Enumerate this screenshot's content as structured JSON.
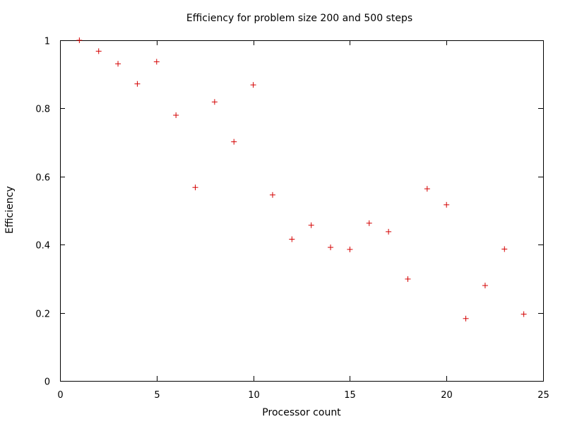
{
  "chart_data": {
    "type": "scatter",
    "title": "Efficiency for problem size 200 and 500 steps",
    "xlabel": "Processor count",
    "ylabel": "Efficiency",
    "xlim": [
      0,
      25
    ],
    "ylim": [
      0,
      1
    ],
    "xticks": [
      0,
      5,
      10,
      15,
      20,
      25
    ],
    "yticks": [
      0,
      0.2,
      0.4,
      0.6,
      0.8,
      1
    ],
    "xtick_labels": [
      "0",
      "5",
      "10",
      "15",
      "20",
      "25"
    ],
    "ytick_labels": [
      "0",
      "0.2",
      "0.4",
      "0.6",
      "0.8",
      "1"
    ],
    "grid": false,
    "marker": "+",
    "marker_color": "#d40000",
    "points": [
      [
        1,
        1.0
      ],
      [
        2,
        0.968
      ],
      [
        3,
        0.931
      ],
      [
        4,
        0.872
      ],
      [
        5,
        0.937
      ],
      [
        6,
        0.78
      ],
      [
        7,
        0.568
      ],
      [
        8,
        0.819
      ],
      [
        9,
        0.702
      ],
      [
        10,
        0.869
      ],
      [
        11,
        0.546
      ],
      [
        12,
        0.416
      ],
      [
        13,
        0.457
      ],
      [
        14,
        0.392
      ],
      [
        15,
        0.386
      ],
      [
        16,
        0.463
      ],
      [
        17,
        0.438
      ],
      [
        18,
        0.299
      ],
      [
        19,
        0.564
      ],
      [
        20,
        0.517
      ],
      [
        21,
        0.183
      ],
      [
        22,
        0.28
      ],
      [
        23,
        0.387
      ],
      [
        24,
        0.196
      ]
    ]
  }
}
